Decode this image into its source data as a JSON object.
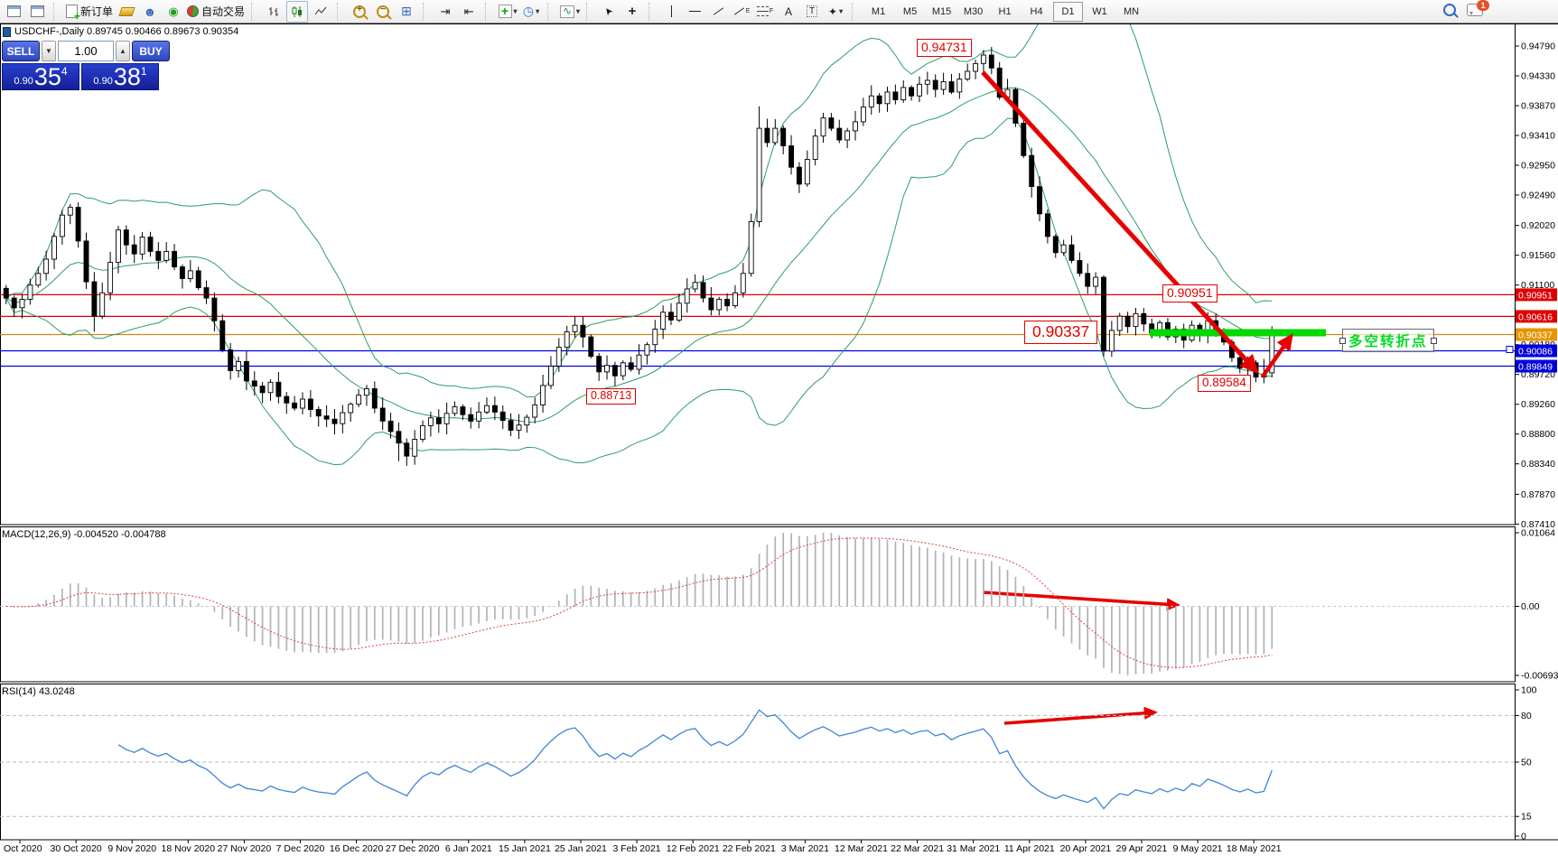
{
  "toolbar": {
    "new_order_label": "新订单",
    "autotrade_label": "自动交易",
    "timeframes": [
      "M1",
      "M5",
      "M15",
      "M30",
      "H1",
      "H4",
      "D1",
      "W1",
      "MN"
    ],
    "active_timeframe": "D1",
    "notification_badge": "1"
  },
  "symbol_header": {
    "text": "USDCHF-,Daily  0.89745 0.90466 0.89673 0.90354"
  },
  "trade_panel": {
    "sell_label": "SELL",
    "buy_label": "BUY",
    "lot_size": "1.00",
    "sell_price_prefix": "0.90",
    "sell_price_big": "35",
    "sell_price_sup": "4",
    "buy_price_prefix": "0.90",
    "buy_price_big": "38",
    "buy_price_sup": "1"
  },
  "price_axis": {
    "plain_ticks": [
      "0.94790",
      "0.94330",
      "0.93870",
      "0.93410",
      "0.92950",
      "0.92490",
      "0.92020",
      "0.91560",
      "0.91100",
      "0.90180",
      "0.89720",
      "0.89260",
      "0.88800",
      "0.88340",
      "0.87870",
      "0.87410"
    ],
    "level_chips": [
      {
        "value": "0.90951",
        "color": "#e00000"
      },
      {
        "value": "0.90616",
        "color": "#e00000"
      },
      {
        "value": "0.90337",
        "color": "#e89300"
      },
      {
        "value": "0.90086",
        "color": "#0000dd"
      },
      {
        "value": "0.89849",
        "color": "#0000dd"
      }
    ]
  },
  "annotations": {
    "peak_price_label": "0.94731",
    "resistance_price_label": "0.90951",
    "pivot_price_label": "0.90337",
    "low_price_label": "0.89584",
    "swing_low_price_label": "0.88713",
    "note_text": "多空转折点"
  },
  "macd_panel": {
    "label": "MACD(12,26,9) -0.004520 -0.004788",
    "ticks": [
      "0.01064",
      "0.00",
      "-0.006934"
    ]
  },
  "rsi_panel": {
    "label": "RSI(14) 43.0248",
    "ticks": [
      "100",
      "80",
      "50",
      "15",
      "0"
    ],
    "level_lines": [
      80,
      50,
      15
    ]
  },
  "x_axis": {
    "labels": [
      "Oct 2020",
      "30 Oct 2020",
      "9 Nov 2020",
      "18 Nov 2020",
      "27 Nov 2020",
      "7 Dec 2020",
      "16 Dec 2020",
      "27 Dec 2020",
      "6 Jan 2021",
      "15 Jan 2021",
      "25 Jan 2021",
      "3 Feb 2021",
      "12 Feb 2021",
      "22 Feb 2021",
      "3 Mar 2021",
      "12 Mar 2021",
      "22 Mar 2021",
      "31 Mar 2021",
      "11 Apr 2021",
      "20 Apr 2021",
      "29 Apr 2021",
      "9 May 2021",
      "18 May 2021"
    ]
  },
  "chart_data": {
    "type": "candlestick",
    "symbol": "USDCHF-",
    "timeframe": "Daily",
    "today_ohlc": {
      "open": 0.89745,
      "high": 0.90466,
      "low": 0.89673,
      "close": 0.90354
    },
    "y_range": [
      0.8741,
      0.9479
    ],
    "closes": [
      0.909,
      0.9075,
      0.9088,
      0.911,
      0.9128,
      0.915,
      0.9185,
      0.9218,
      0.923,
      0.9178,
      0.9115,
      0.9062,
      0.9098,
      0.9145,
      0.9195,
      0.9172,
      0.9158,
      0.9184,
      0.9162,
      0.9148,
      0.9162,
      0.9138,
      0.912,
      0.9132,
      0.9106,
      0.909,
      0.9055,
      0.901,
      0.8978,
      0.8992,
      0.8962,
      0.8954,
      0.8944,
      0.896,
      0.8938,
      0.8928,
      0.892,
      0.8934,
      0.8918,
      0.8908,
      0.8903,
      0.8896,
      0.8913,
      0.8926,
      0.894,
      0.895,
      0.892,
      0.89,
      0.8884,
      0.8866,
      0.8846,
      0.8872,
      0.8893,
      0.8905,
      0.8896,
      0.8912,
      0.8922,
      0.891,
      0.89,
      0.8914,
      0.8924,
      0.8914,
      0.8901,
      0.8886,
      0.8894,
      0.8906,
      0.8925,
      0.8955,
      0.8985,
      0.9014,
      0.9038,
      0.9048,
      0.903,
      0.9,
      0.8976,
      0.8986,
      0.897,
      0.899,
      0.898,
      0.9002,
      0.9018,
      0.9042,
      0.9068,
      0.9056,
      0.9082,
      0.9104,
      0.9114,
      0.909,
      0.9072,
      0.9088,
      0.9078,
      0.9098,
      0.9128,
      0.9208,
      0.9352,
      0.933,
      0.9352,
      0.9325,
      0.9292,
      0.9266,
      0.9304,
      0.934,
      0.9368,
      0.9352,
      0.9334,
      0.9348,
      0.9362,
      0.9385,
      0.9402,
      0.939,
      0.9408,
      0.9396,
      0.9415,
      0.9402,
      0.942,
      0.9426,
      0.9412,
      0.9424,
      0.9408,
      0.9428,
      0.944,
      0.9452,
      0.9465,
      0.9445,
      0.94,
      0.9412,
      0.936,
      0.931,
      0.9262,
      0.922,
      0.9185,
      0.916,
      0.9172,
      0.9148,
      0.9128,
      0.9108,
      0.9122,
      0.9008,
      0.904,
      0.9062,
      0.9046,
      0.9066,
      0.905,
      0.9036,
      0.9052,
      0.903,
      0.9042,
      0.9025,
      0.9048,
      0.9032,
      0.9055,
      0.904,
      0.9022,
      0.8998,
      0.8982,
      0.899,
      0.8968,
      0.8972,
      0.90354
    ],
    "overrides": {
      "11": {
        "l": 0.9038
      },
      "49": {
        "l": 0.8838
      },
      "50": {
        "l": 0.8831
      },
      "71": {
        "h": 0.9062
      },
      "94": {
        "h": 0.9386
      },
      "99": {
        "l": 0.9252
      },
      "102": {
        "h": 0.9376
      },
      "122": {
        "h": 0.94731
      },
      "137": {
        "l": 0.9
      },
      "156": {
        "l": 0.896
      },
      "157": {
        "h": 0.8996,
        "l": 0.89584
      },
      "158": {
        "o": 0.89745,
        "h": 0.90466,
        "l": 0.89673
      }
    },
    "level_lines": [
      {
        "price": 0.90951,
        "color": "#dd0000"
      },
      {
        "price": 0.90616,
        "color": "#dd0000"
      },
      {
        "price": 0.90337,
        "color": "#cc8a1e"
      },
      {
        "price": 0.90086,
        "color": "#0000e0"
      },
      {
        "price": 0.89849,
        "color": "#0000e0"
      }
    ],
    "indicators": {
      "bollinger_period": 20,
      "bollinger_deviation": 2,
      "macd": [
        12,
        26,
        9
      ],
      "rsi_period": 14
    },
    "macd_range": [
      -0.006934,
      0.01064
    ],
    "rsi_current": 43.0248
  }
}
